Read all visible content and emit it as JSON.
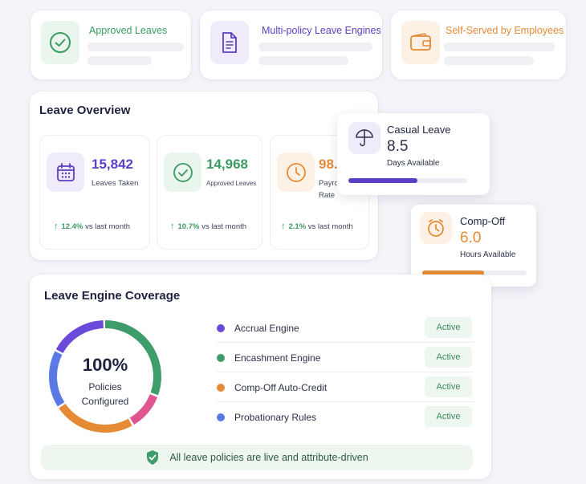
{
  "features": [
    {
      "title": "Approved Leaves",
      "icon": "check-circle-icon",
      "color": "#3a9b62"
    },
    {
      "title": "Multi-policy Leave Engines",
      "icon": "document-icon",
      "color": "#5b3fc4"
    },
    {
      "title": "Self-Served by Employees",
      "icon": "wallet-icon",
      "color": "#e58a35"
    }
  ],
  "overview": {
    "title": "Leave Overview",
    "stats": [
      {
        "value": "15,842",
        "label": "Leaves Taken",
        "trend": "12.4%",
        "trend_suffix": "vs last month",
        "icon": "calendar-icon",
        "color": "#5b3fc4"
      },
      {
        "value": "14,968",
        "label": "Approved Leaves",
        "trend": "10.7%",
        "trend_suffix": "vs last month",
        "icon": "check-circle-icon",
        "color": "#3a9b62"
      },
      {
        "value": "98.",
        "label": "Payro",
        "label2": "Rate",
        "trend": "2.1%",
        "trend_suffix": "vs last month",
        "icon": "clock-icon",
        "color": "#e58a35"
      }
    ]
  },
  "casual": {
    "title": "Casual Leave",
    "value": "8.5",
    "sub": "Days Available",
    "progress": 0.58,
    "color": "#5b3fc4",
    "icon": "umbrella-icon"
  },
  "compoff": {
    "title": "Comp-Off",
    "value": "6.0",
    "sub": "Hours Available",
    "progress": 0.59,
    "color": "#e58a35",
    "icon": "timer-icon"
  },
  "coverage": {
    "title": "Leave Engine Coverage",
    "percent": "100%",
    "center_line1": "Policies",
    "center_line2": "Configured",
    "rows": [
      {
        "name": "Accrual Engine",
        "status": "Active",
        "color": "#6a4ad8"
      },
      {
        "name": "Encashment Engine",
        "status": "Active",
        "color": "#3f9d6b"
      },
      {
        "name": "Comp-Off Auto-Credit",
        "status": "Active",
        "color": "#e58a35"
      },
      {
        "name": "Probationary Rules",
        "status": "Active",
        "color": "#5a78e6"
      }
    ],
    "ring_segments": [
      {
        "color": "#3f9d6b",
        "fraction": 0.31
      },
      {
        "color": "#e0558f",
        "fraction": 0.11
      },
      {
        "color": "#e58a35",
        "fraction": 0.24
      },
      {
        "color": "#5a78e6",
        "fraction": 0.17
      },
      {
        "color": "#6a4ad8",
        "fraction": 0.17
      }
    ],
    "banner": "All leave policies are live and attribute-driven"
  }
}
